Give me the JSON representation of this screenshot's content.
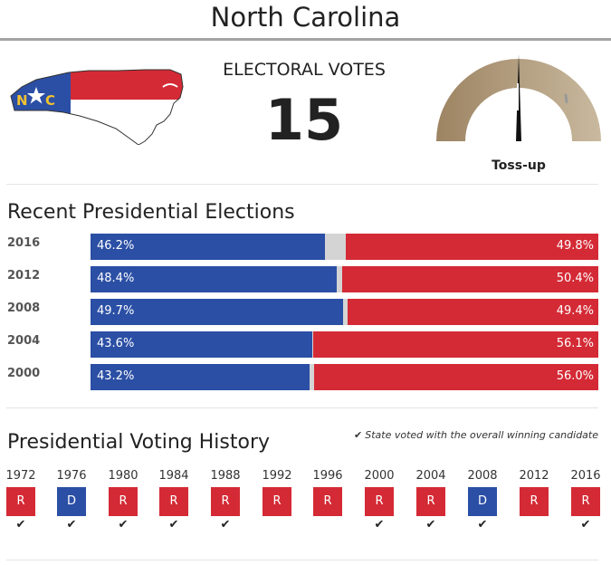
{
  "state": "North Carolina",
  "electoral_votes": {
    "label": "ELECTORAL VOTES",
    "value": "15"
  },
  "forecast": {
    "label": "Toss-up",
    "needle_fraction": 0.5
  },
  "recent_elections": {
    "title": "Recent Presidential Elections",
    "rows": [
      {
        "year": "2016",
        "dem_pct": 46.2,
        "rep_pct": 49.8,
        "dem_label": "46.2%",
        "rep_label": "49.8%"
      },
      {
        "year": "2012",
        "dem_pct": 48.4,
        "rep_pct": 50.4,
        "dem_label": "48.4%",
        "rep_label": "50.4%"
      },
      {
        "year": "2008",
        "dem_pct": 49.7,
        "rep_pct": 49.4,
        "dem_label": "49.7%",
        "rep_label": "49.4%"
      },
      {
        "year": "2004",
        "dem_pct": 43.6,
        "rep_pct": 56.1,
        "dem_label": "43.6%",
        "rep_label": "56.1%"
      },
      {
        "year": "2000",
        "dem_pct": 43.2,
        "rep_pct": 56.0,
        "dem_label": "43.2%",
        "rep_label": "56.0%"
      }
    ]
  },
  "voting_history": {
    "title": "Presidential Voting History",
    "legend": "State voted with the overall winning candidate",
    "items": [
      {
        "year": "1972",
        "party": "R",
        "with_winner": true
      },
      {
        "year": "1976",
        "party": "D",
        "with_winner": true
      },
      {
        "year": "1980",
        "party": "R",
        "with_winner": true
      },
      {
        "year": "1984",
        "party": "R",
        "with_winner": true
      },
      {
        "year": "1988",
        "party": "R",
        "with_winner": true
      },
      {
        "year": "1992",
        "party": "R",
        "with_winner": false
      },
      {
        "year": "1996",
        "party": "R",
        "with_winner": false
      },
      {
        "year": "2000",
        "party": "R",
        "with_winner": true
      },
      {
        "year": "2004",
        "party": "R",
        "with_winner": true
      },
      {
        "year": "2008",
        "party": "D",
        "with_winner": true
      },
      {
        "year": "2012",
        "party": "R",
        "with_winner": false
      },
      {
        "year": "2016",
        "party": "R",
        "with_winner": true
      }
    ]
  },
  "colors": {
    "democrat": "#2b4fa5",
    "republican": "#d42a35",
    "other": "#d4d4d4",
    "gauge_dark": "#9d8462",
    "gauge_light": "#c9b99f"
  },
  "icons": {
    "state_map": "north-carolina-flag-map",
    "check": "checkmark-icon"
  }
}
